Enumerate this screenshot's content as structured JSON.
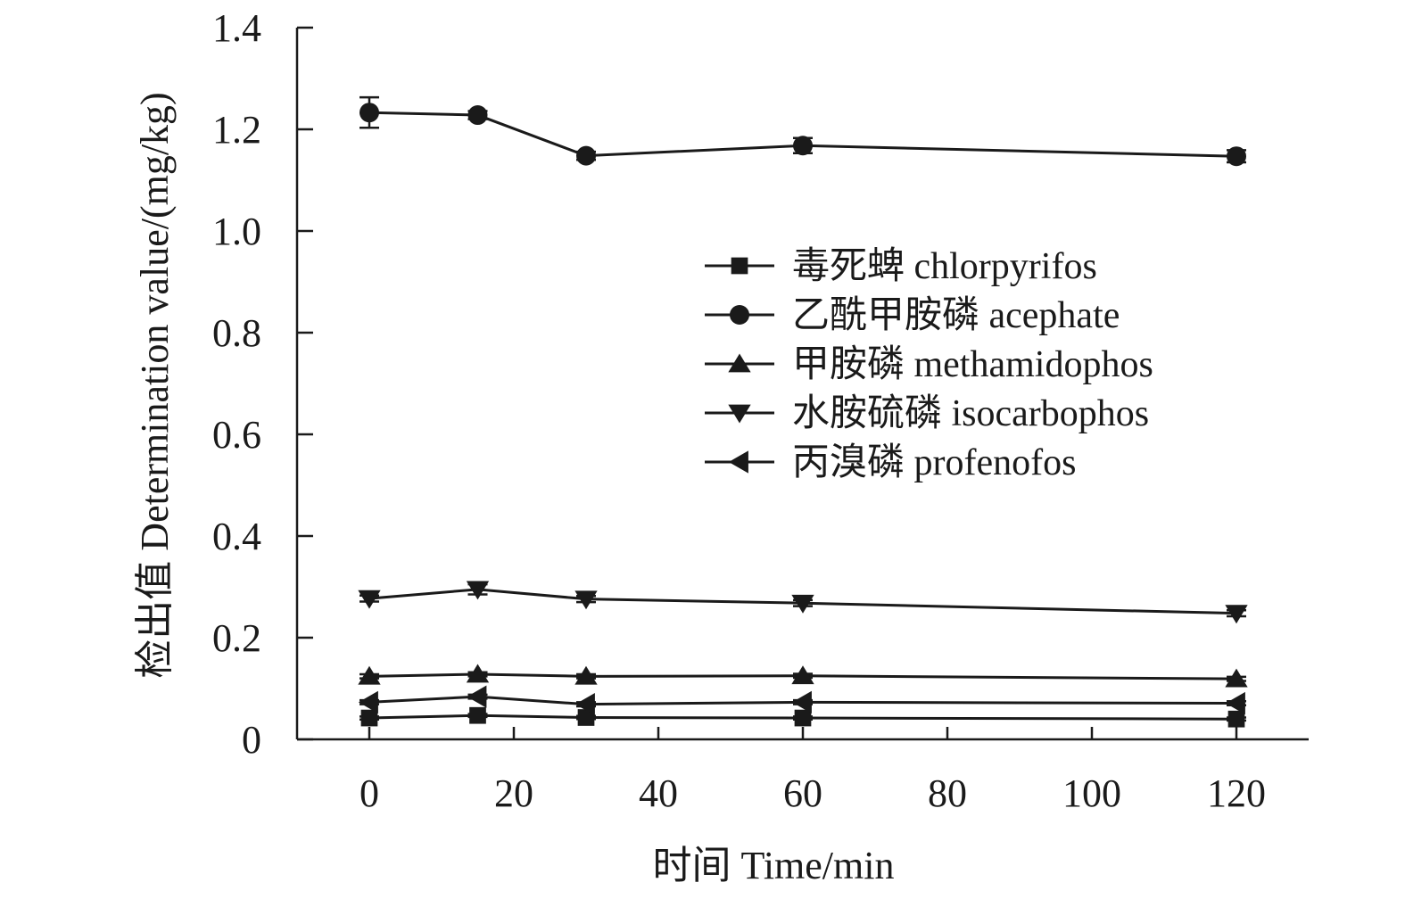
{
  "chart_data": {
    "type": "line",
    "title": "",
    "xlabel": "时间 Time/min",
    "ylabel": "检出值 Determination value/(mg/kg)",
    "x": [
      0,
      15,
      30,
      60,
      120
    ],
    "xlim": [
      -10,
      130
    ],
    "ylim": [
      0,
      1.4
    ],
    "xticks": [
      0,
      20,
      40,
      60,
      80,
      100,
      120
    ],
    "yticks": [
      0,
      0.2,
      0.4,
      0.6,
      0.8,
      1.0,
      1.2,
      1.4
    ],
    "xtick_labels": [
      "0",
      "20",
      "40",
      "60",
      "80",
      "100",
      "120"
    ],
    "ytick_labels": [
      "0",
      "0.2",
      "0.4",
      "0.6",
      "0.8",
      "1.0",
      "1.2",
      "1.4"
    ],
    "grid": false,
    "legend_position": "center-right",
    "color": "#1a1a1a",
    "series": [
      {
        "name": "毒死蜱 chlorpyrifos",
        "marker": "square",
        "values": [
          0.042,
          0.047,
          0.043,
          0.042,
          0.04
        ],
        "errors": [
          0.003,
          0.003,
          0.003,
          0.003,
          0.003
        ]
      },
      {
        "name": "乙酰甲胺磷 acephate",
        "marker": "circle",
        "values": [
          1.233,
          1.228,
          1.148,
          1.168,
          1.147
        ],
        "errors": [
          0.03,
          0.008,
          0.008,
          0.015,
          0.012
        ]
      },
      {
        "name": "甲胺磷 methamidophos",
        "marker": "triangle-up",
        "values": [
          0.124,
          0.128,
          0.124,
          0.125,
          0.119
        ],
        "errors": [
          0.004,
          0.004,
          0.004,
          0.004,
          0.004
        ]
      },
      {
        "name": "水胺硫磷 isocarbophos",
        "marker": "triangle-down",
        "values": [
          0.277,
          0.295,
          0.276,
          0.268,
          0.248
        ],
        "errors": [
          0.006,
          0.01,
          0.006,
          0.006,
          0.006
        ]
      },
      {
        "name": "丙溴磷 profenofos",
        "marker": "triangle-left",
        "values": [
          0.073,
          0.084,
          0.069,
          0.073,
          0.071
        ],
        "errors": [
          0.004,
          0.004,
          0.004,
          0.004,
          0.004
        ]
      }
    ]
  }
}
